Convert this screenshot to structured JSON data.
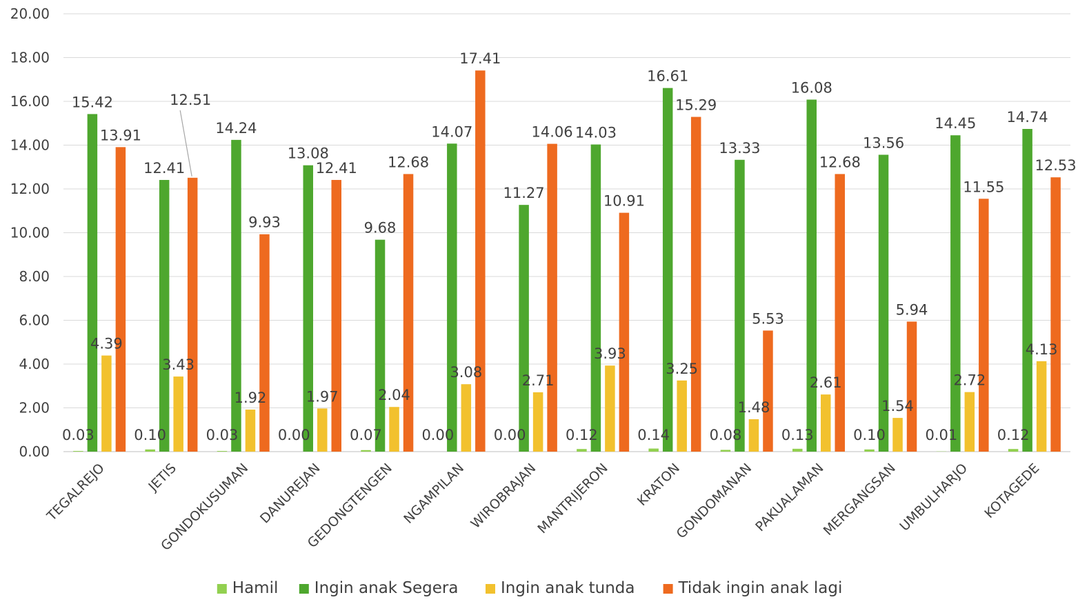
{
  "chart_data": {
    "type": "bar",
    "title": "",
    "xlabel": "",
    "ylabel": "",
    "ylim": [
      0,
      20
    ],
    "y_ticks": [
      "0.00",
      "2.00",
      "4.00",
      "6.00",
      "8.00",
      "10.00",
      "12.00",
      "14.00",
      "16.00",
      "18.00",
      "20.00"
    ],
    "grid": true,
    "legend_position": "bottom",
    "categories": [
      "TEGALREJO",
      "JETIS",
      "GONDOKUSUMAN",
      "DANUREJAN",
      "GEDONGTENGEN",
      "NGAMPILAN",
      "WIROBRAJAN",
      "MANTRIJERON",
      "KRATON",
      "GONDOMANAN",
      "PAKUALAMAN",
      "MERGANGSAN",
      "UMBULHARJO",
      "KOTAGEDE"
    ],
    "series": [
      {
        "name": "Hamil",
        "color": "#92d050",
        "values": [
          0.03,
          0.1,
          0.03,
          0.0,
          0.07,
          0.0,
          0.0,
          0.12,
          0.14,
          0.08,
          0.13,
          0.1,
          0.01,
          0.12
        ],
        "labels": [
          "0.03",
          "0.10",
          "0.03",
          "0.00",
          "0.07",
          "0.00",
          "0.00",
          "0.12",
          "0.14",
          "0.08",
          "0.13",
          "0.10",
          "0.01",
          "0.12"
        ]
      },
      {
        "name": "Ingin anak Segera",
        "color": "#4ea72e",
        "values": [
          15.42,
          12.41,
          14.24,
          13.08,
          9.68,
          14.07,
          11.27,
          14.03,
          16.61,
          13.33,
          16.08,
          13.56,
          14.45,
          14.74
        ],
        "labels": [
          "15.42",
          "12.41",
          "14.24",
          "13.08",
          "9.68",
          "14.07",
          "11.27",
          "14.03",
          "16.61",
          "13.33",
          "16.08",
          "13.56",
          "14.45",
          "14.74"
        ]
      },
      {
        "name": "Ingin anak tunda",
        "color": "#f2c12e",
        "values": [
          4.39,
          3.43,
          1.92,
          1.97,
          2.04,
          3.08,
          2.71,
          3.93,
          3.25,
          1.48,
          2.61,
          1.54,
          2.72,
          4.13
        ],
        "labels": [
          "4.39",
          "3.43",
          "1.92",
          "1.97",
          "2.04",
          "3.08",
          "2.71",
          "3.93",
          "3.25",
          "1.48",
          "2.61",
          "1.54",
          "2.72",
          "4.13"
        ]
      },
      {
        "name": "Tidak ingin anak lagi",
        "color": "#ee6a1f",
        "values": [
          13.91,
          12.51,
          9.93,
          12.41,
          12.68,
          17.41,
          14.06,
          10.91,
          15.29,
          5.53,
          12.68,
          5.94,
          11.55,
          12.53
        ],
        "labels": [
          "13.91",
          "12.51",
          "9.93",
          "12.41",
          "12.68",
          "17.41",
          "14.06",
          "10.91",
          "15.29",
          "5.53",
          "12.68",
          "5.94",
          "11.55",
          "12.53"
        ]
      }
    ]
  }
}
